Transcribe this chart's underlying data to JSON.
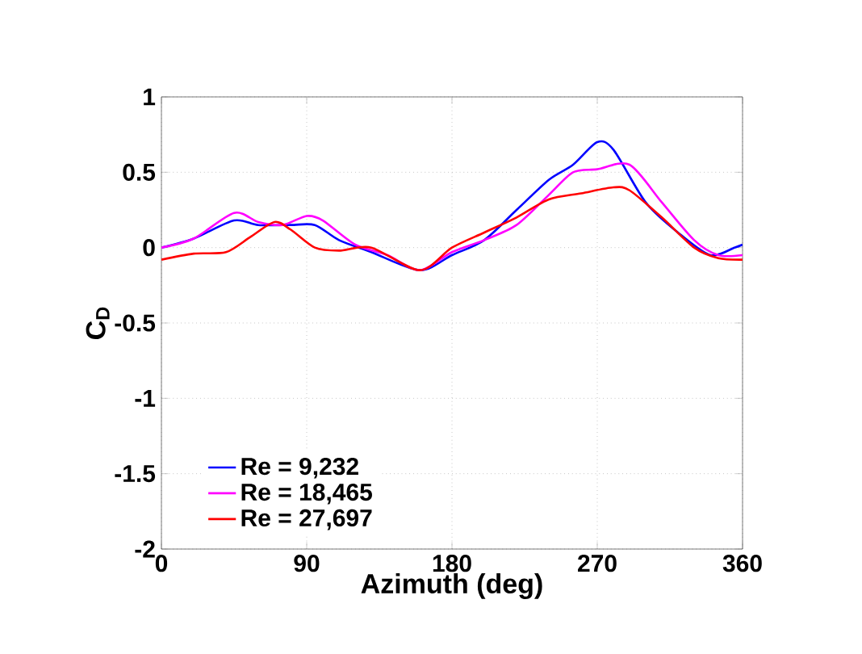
{
  "chart_data": {
    "type": "line",
    "xlabel": "Azimuth (deg)",
    "ylabel": "C$_{D}$",
    "xlim": [
      0,
      360
    ],
    "ylim": [
      -2,
      1
    ],
    "xticks": [
      0,
      90,
      180,
      270,
      360
    ],
    "yticks": [
      -2,
      -1.5,
      -1,
      -0.5,
      0,
      0.5,
      1
    ],
    "grid": true,
    "legend": "bottom left",
    "series": [
      {
        "name": "Re = 9,232",
        "color": "#0000ff",
        "x": [
          0,
          20,
          45,
          60,
          80,
          95,
          110,
          130,
          160,
          180,
          200,
          220,
          240,
          255,
          270,
          280,
          300,
          320,
          340,
          355,
          360
        ],
        "values": [
          0,
          0.06,
          0.18,
          0.15,
          0.15,
          0.15,
          0.05,
          -0.03,
          -0.15,
          -0.05,
          0.05,
          0.25,
          0.45,
          0.55,
          0.7,
          0.65,
          0.3,
          0.1,
          -0.05,
          0,
          0.02
        ]
      },
      {
        "name": "Re = 18,465",
        "color": "#ff00ff",
        "x": [
          0,
          20,
          45,
          60,
          75,
          90,
          100,
          120,
          140,
          160,
          180,
          200,
          220,
          240,
          255,
          270,
          290,
          310,
          330,
          345,
          360
        ],
        "values": [
          0,
          0.06,
          0.23,
          0.17,
          0.15,
          0.21,
          0.18,
          0.02,
          -0.05,
          -0.15,
          -0.03,
          0.05,
          0.15,
          0.35,
          0.5,
          0.52,
          0.55,
          0.3,
          0.05,
          -0.05,
          -0.05
        ]
      },
      {
        "name": "Re = 27,697",
        "color": "#ff0000",
        "x": [
          0,
          20,
          40,
          55,
          70,
          80,
          95,
          110,
          130,
          160,
          180,
          200,
          220,
          240,
          260,
          280,
          290,
          310,
          330,
          345,
          360
        ],
        "values": [
          -0.08,
          -0.04,
          -0.03,
          0.07,
          0.17,
          0.12,
          0.0,
          -0.02,
          0.0,
          -0.15,
          0.0,
          0.1,
          0.2,
          0.32,
          0.36,
          0.4,
          0.38,
          0.2,
          0.0,
          -0.07,
          -0.08
        ]
      }
    ]
  }
}
